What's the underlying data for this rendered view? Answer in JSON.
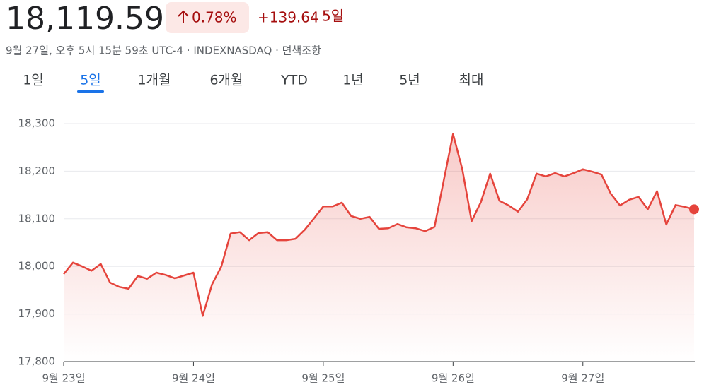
{
  "header": {
    "price": "18,119.59",
    "change_percent": "0.78%",
    "change": "+139.64",
    "period": "5일",
    "subtitle": "9월 27일, 오후 5시 15분 59초 UTC-4 · INDEXNASDAQ · 면책조항"
  },
  "tabs": {
    "items": [
      "1일",
      "5일",
      "1개월",
      "6개월",
      "YTD",
      "1년",
      "5년",
      "최대"
    ],
    "selected": 1
  },
  "chart_data": {
    "type": "area",
    "color": "#e5443c",
    "grid": true,
    "x": [
      0,
      1,
      2,
      3,
      4,
      5,
      6,
      7,
      8,
      9,
      10,
      11,
      12,
      13,
      14,
      15,
      16,
      17,
      18,
      19,
      20,
      21,
      22,
      23,
      24,
      25,
      26,
      27,
      28,
      29,
      30,
      31,
      32,
      33,
      34,
      35,
      36,
      37,
      38,
      39,
      40,
      41,
      42,
      43,
      44,
      45,
      46,
      47,
      48,
      49,
      50,
      51,
      52,
      53,
      54,
      55,
      56,
      57,
      58,
      59,
      60,
      61,
      62,
      63,
      64,
      65,
      66,
      67,
      68
    ],
    "values": [
      17984,
      18008,
      18000,
      17991,
      18005,
      17966,
      17957,
      17953,
      17980,
      17974,
      17987,
      17982,
      17975,
      17981,
      17987,
      17896,
      17962,
      18000,
      18069,
      18072,
      18055,
      18070,
      18072,
      18055,
      18055,
      18058,
      18077,
      18101,
      18126,
      18126,
      18134,
      18106,
      18100,
      18104,
      18079,
      18080,
      18089,
      18082,
      18080,
      18074,
      18083,
      18181,
      18278,
      18204,
      18095,
      18135,
      18195,
      18138,
      18128,
      18115,
      18141,
      18195,
      18189,
      18196,
      18189,
      18196,
      18204,
      18199,
      18193,
      18153,
      18128,
      18140,
      18146,
      18120,
      18158,
      18088,
      18129,
      18125,
      18120
    ],
    "xlim": [
      0,
      68
    ],
    "xticks": [
      {
        "value": 0,
        "label": "9월 23일"
      },
      {
        "value": 14,
        "label": "9월 24일"
      },
      {
        "value": 28,
        "label": "9월 25일"
      },
      {
        "value": 42,
        "label": "9월 26일"
      },
      {
        "value": 56,
        "label": "9월 27일"
      }
    ],
    "ylim": [
      17800,
      18300
    ],
    "yticks": [
      {
        "value": 17800,
        "label": "17,800"
      },
      {
        "value": 17900,
        "label": "17,900"
      },
      {
        "value": 18000,
        "label": "18,000"
      },
      {
        "value": 18100,
        "label": "18,100"
      },
      {
        "value": 18200,
        "label": "18,200"
      },
      {
        "value": 18300,
        "label": "18,300"
      }
    ]
  }
}
